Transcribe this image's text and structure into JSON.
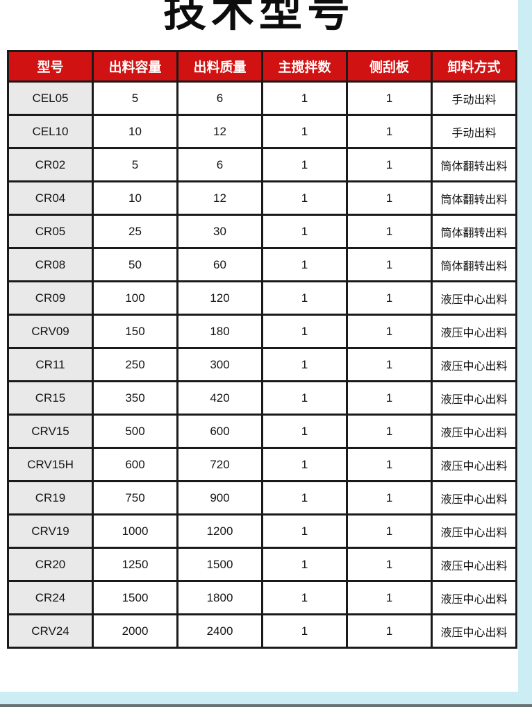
{
  "page": {
    "title": "技术型号"
  },
  "colors": {
    "header_bg": "#d01212",
    "header_text": "#ffffff",
    "model_col_bg": "#e9e9e9",
    "table_border": "#1a1a1a",
    "page_bg": "#ffffff",
    "accent_strip": "#cdedf4",
    "divider_bar": "#6a7174"
  },
  "table": {
    "columns": [
      "型号",
      "出料容量",
      "出料质量",
      "主搅拌数",
      "侧刮板",
      "卸料方式"
    ],
    "rows": [
      [
        "CEL05",
        "5",
        "6",
        "1",
        "1",
        "手动出料"
      ],
      [
        "CEL10",
        "10",
        "12",
        "1",
        "1",
        "手动出料"
      ],
      [
        "CR02",
        "5",
        "6",
        "1",
        "1",
        "筒体翻转出料"
      ],
      [
        "CR04",
        "10",
        "12",
        "1",
        "1",
        "筒体翻转出料"
      ],
      [
        "CR05",
        "25",
        "30",
        "1",
        "1",
        "筒体翻转出料"
      ],
      [
        "CR08",
        "50",
        "60",
        "1",
        "1",
        "筒体翻转出料"
      ],
      [
        "CR09",
        "100",
        "120",
        "1",
        "1",
        "液压中心出料"
      ],
      [
        "CRV09",
        "150",
        "180",
        "1",
        "1",
        "液压中心出料"
      ],
      [
        "CR11",
        "250",
        "300",
        "1",
        "1",
        "液压中心出料"
      ],
      [
        "CR15",
        "350",
        "420",
        "1",
        "1",
        "液压中心出料"
      ],
      [
        "CRV15",
        "500",
        "600",
        "1",
        "1",
        "液压中心出料"
      ],
      [
        "CRV15H",
        "600",
        "720",
        "1",
        "1",
        "液压中心出料"
      ],
      [
        "CR19",
        "750",
        "900",
        "1",
        "1",
        "液压中心出料"
      ],
      [
        "CRV19",
        "1000",
        "1200",
        "1",
        "1",
        "液压中心出料"
      ],
      [
        "CR20",
        "1250",
        "1500",
        "1",
        "1",
        "液压中心出料"
      ],
      [
        "CR24",
        "1500",
        "1800",
        "1",
        "1",
        "液压中心出料"
      ],
      [
        "CRV24",
        "2000",
        "2400",
        "1",
        "1",
        "液压中心出料"
      ]
    ]
  }
}
